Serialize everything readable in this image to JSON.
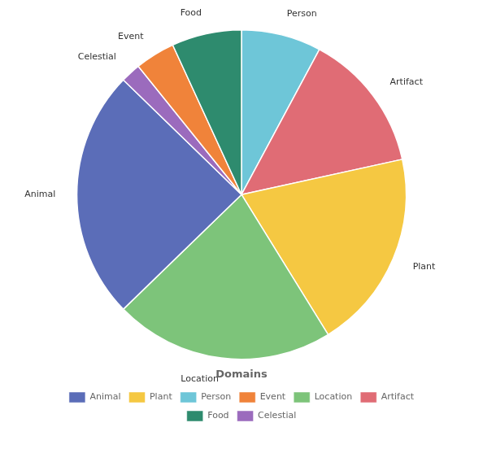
{
  "chart_data": {
    "type": "pie",
    "title": "Domains",
    "categories": [
      "Person",
      "Artifact",
      "Plant",
      "Location",
      "Animal",
      "Celestial",
      "Event",
      "Food"
    ],
    "values": [
      8.0,
      14.0,
      20.0,
      22.0,
      25.0,
      2.0,
      4.0,
      7.0
    ],
    "colors": [
      "#6EC6D8",
      "#E06C75",
      "#F5C842",
      "#7DC47A",
      "#5B6DB8",
      "#9B6BBD",
      "#F0833A",
      "#2E8B6E"
    ],
    "legend": "bottom",
    "legend_entries": [
      "Animal",
      "Plant",
      "Person",
      "Event",
      "Location",
      "Artifact",
      "Food",
      "Celestial"
    ]
  }
}
